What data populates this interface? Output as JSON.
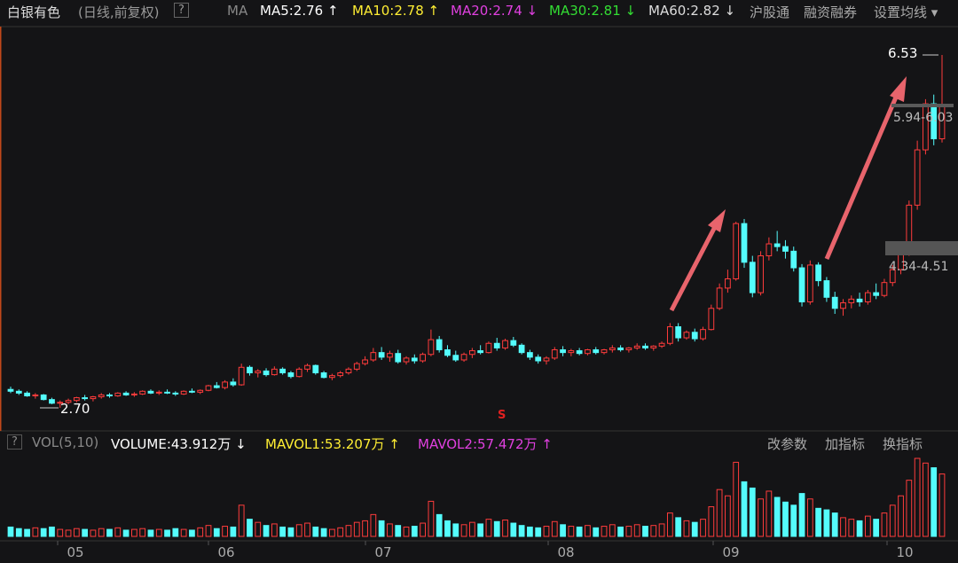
{
  "header": {
    "name": "白银有色",
    "mode": "(日线,前复权)",
    "help": "?",
    "ma_label": "MA",
    "ma5": "MA5:2.76 ↑",
    "ma10": "MA10:2.78 ↑",
    "ma20": "MA20:2.74 ↓",
    "ma30": "MA30:2.81 ↓",
    "ma60": "MA60:2.82 ↓",
    "tabs": [
      "沪股通",
      "融资融券",
      "设置均线 ▾"
    ]
  },
  "price_panel": {
    "high_label": "6.53",
    "low_label": "2.70",
    "range_upper": "5.94-6.03",
    "range_lower": "4.34-4.51",
    "signal": "S",
    "candles": [
      [
        2.9,
        2.93,
        2.86,
        2.88
      ],
      [
        2.88,
        2.9,
        2.84,
        2.86
      ],
      [
        2.86,
        2.88,
        2.82,
        2.83
      ],
      [
        2.83,
        2.86,
        2.8,
        2.84
      ],
      [
        2.84,
        2.85,
        2.78,
        2.79
      ],
      [
        2.79,
        2.81,
        2.74,
        2.75
      ],
      [
        2.75,
        2.78,
        2.7,
        2.76
      ],
      [
        2.76,
        2.8,
        2.74,
        2.78
      ],
      [
        2.78,
        2.82,
        2.76,
        2.81
      ],
      [
        2.81,
        2.84,
        2.78,
        2.8
      ],
      [
        2.8,
        2.83,
        2.77,
        2.82
      ],
      [
        2.82,
        2.86,
        2.8,
        2.84
      ],
      [
        2.84,
        2.86,
        2.81,
        2.83
      ],
      [
        2.83,
        2.87,
        2.82,
        2.86
      ],
      [
        2.86,
        2.88,
        2.83,
        2.84
      ],
      [
        2.84,
        2.87,
        2.82,
        2.85
      ],
      [
        2.85,
        2.89,
        2.84,
        2.88
      ],
      [
        2.88,
        2.9,
        2.85,
        2.86
      ],
      [
        2.86,
        2.89,
        2.84,
        2.87
      ],
      [
        2.87,
        2.9,
        2.85,
        2.86
      ],
      [
        2.86,
        2.88,
        2.83,
        2.85
      ],
      [
        2.85,
        2.89,
        2.84,
        2.88
      ],
      [
        2.88,
        2.91,
        2.86,
        2.87
      ],
      [
        2.87,
        2.9,
        2.85,
        2.89
      ],
      [
        2.89,
        2.95,
        2.88,
        2.94
      ],
      [
        2.94,
        2.98,
        2.91,
        2.92
      ],
      [
        2.92,
        3.0,
        2.9,
        2.98
      ],
      [
        2.98,
        3.02,
        2.93,
        2.95
      ],
      [
        2.95,
        3.18,
        2.94,
        3.14
      ],
      [
        3.14,
        3.16,
        3.05,
        3.08
      ],
      [
        3.08,
        3.12,
        3.03,
        3.1
      ],
      [
        3.1,
        3.13,
        3.04,
        3.06
      ],
      [
        3.06,
        3.15,
        3.05,
        3.12
      ],
      [
        3.12,
        3.14,
        3.06,
        3.08
      ],
      [
        3.08,
        3.1,
        3.02,
        3.04
      ],
      [
        3.04,
        3.14,
        3.03,
        3.12
      ],
      [
        3.12,
        3.18,
        3.09,
        3.16
      ],
      [
        3.16,
        3.17,
        3.06,
        3.08
      ],
      [
        3.08,
        3.1,
        3.02,
        3.03
      ],
      [
        3.03,
        3.07,
        3.0,
        3.05
      ],
      [
        3.05,
        3.1,
        3.03,
        3.08
      ],
      [
        3.08,
        3.14,
        3.06,
        3.12
      ],
      [
        3.12,
        3.2,
        3.1,
        3.18
      ],
      [
        3.18,
        3.26,
        3.16,
        3.22
      ],
      [
        3.22,
        3.35,
        3.2,
        3.3
      ],
      [
        3.3,
        3.36,
        3.22,
        3.25
      ],
      [
        3.25,
        3.32,
        3.2,
        3.29
      ],
      [
        3.29,
        3.33,
        3.18,
        3.2
      ],
      [
        3.2,
        3.26,
        3.17,
        3.24
      ],
      [
        3.24,
        3.28,
        3.18,
        3.21
      ],
      [
        3.21,
        3.3,
        3.19,
        3.28
      ],
      [
        3.28,
        3.55,
        3.26,
        3.44
      ],
      [
        3.44,
        3.48,
        3.3,
        3.33
      ],
      [
        3.33,
        3.38,
        3.25,
        3.27
      ],
      [
        3.27,
        3.32,
        3.2,
        3.22
      ],
      [
        3.22,
        3.3,
        3.2,
        3.28
      ],
      [
        3.28,
        3.35,
        3.24,
        3.32
      ],
      [
        3.32,
        3.38,
        3.28,
        3.3
      ],
      [
        3.3,
        3.42,
        3.29,
        3.4
      ],
      [
        3.4,
        3.46,
        3.32,
        3.35
      ],
      [
        3.35,
        3.45,
        3.33,
        3.43
      ],
      [
        3.43,
        3.47,
        3.36,
        3.38
      ],
      [
        3.38,
        3.4,
        3.28,
        3.3
      ],
      [
        3.3,
        3.33,
        3.22,
        3.25
      ],
      [
        3.25,
        3.28,
        3.18,
        3.21
      ],
      [
        3.21,
        3.26,
        3.17,
        3.24
      ],
      [
        3.24,
        3.36,
        3.22,
        3.33
      ],
      [
        3.33,
        3.37,
        3.26,
        3.3
      ],
      [
        3.3,
        3.34,
        3.26,
        3.32
      ],
      [
        3.32,
        3.35,
        3.27,
        3.29
      ],
      [
        3.29,
        3.34,
        3.27,
        3.33
      ],
      [
        3.33,
        3.36,
        3.28,
        3.3
      ],
      [
        3.3,
        3.34,
        3.28,
        3.33
      ],
      [
        3.33,
        3.38,
        3.3,
        3.35
      ],
      [
        3.35,
        3.38,
        3.31,
        3.33
      ],
      [
        3.33,
        3.36,
        3.3,
        3.35
      ],
      [
        3.35,
        3.4,
        3.33,
        3.37
      ],
      [
        3.37,
        3.4,
        3.33,
        3.35
      ],
      [
        3.35,
        3.38,
        3.32,
        3.37
      ],
      [
        3.37,
        3.42,
        3.35,
        3.4
      ],
      [
        3.4,
        3.62,
        3.38,
        3.58
      ],
      [
        3.58,
        3.62,
        3.42,
        3.46
      ],
      [
        3.46,
        3.54,
        3.44,
        3.52
      ],
      [
        3.52,
        3.56,
        3.42,
        3.45
      ],
      [
        3.45,
        3.58,
        3.43,
        3.55
      ],
      [
        3.55,
        3.82,
        3.54,
        3.78
      ],
      [
        3.78,
        4.05,
        3.76,
        4.0
      ],
      [
        4.0,
        4.2,
        3.95,
        4.1
      ],
      [
        4.1,
        4.72,
        4.08,
        4.7
      ],
      [
        4.7,
        4.75,
        4.22,
        4.28
      ],
      [
        4.28,
        4.35,
        3.9,
        3.95
      ],
      [
        3.95,
        4.4,
        3.92,
        4.35
      ],
      [
        4.35,
        4.55,
        4.3,
        4.48
      ],
      [
        4.48,
        4.62,
        4.4,
        4.45
      ],
      [
        4.45,
        4.52,
        4.32,
        4.4
      ],
      [
        4.4,
        4.45,
        4.18,
        4.22
      ],
      [
        4.22,
        4.26,
        3.8,
        3.85
      ],
      [
        3.85,
        4.3,
        3.82,
        4.25
      ],
      [
        4.25,
        4.28,
        4.02,
        4.08
      ],
      [
        4.08,
        4.12,
        3.85,
        3.9
      ],
      [
        3.9,
        3.96,
        3.72,
        3.78
      ],
      [
        3.78,
        3.88,
        3.7,
        3.84
      ],
      [
        3.84,
        3.92,
        3.78,
        3.88
      ],
      [
        3.88,
        3.95,
        3.8,
        3.85
      ],
      [
        3.85,
        3.98,
        3.82,
        3.95
      ],
      [
        3.95,
        4.05,
        3.88,
        3.92
      ],
      [
        3.92,
        4.1,
        3.9,
        4.06
      ],
      [
        4.06,
        4.25,
        4.02,
        4.2
      ],
      [
        4.2,
        4.45,
        4.15,
        4.4
      ],
      [
        4.4,
        4.95,
        4.35,
        4.9
      ],
      [
        4.9,
        5.6,
        4.85,
        5.5
      ],
      [
        5.5,
        6.05,
        5.45,
        6.0
      ],
      [
        6.0,
        6.1,
        5.55,
        5.62
      ],
      [
        5.62,
        6.53,
        5.58,
        5.98
      ]
    ]
  },
  "volume_panel": {
    "indicator": "VOL(5,10)",
    "volume": "VOLUME:43.912万 ↓",
    "mavol1": "MAVOL1:53.207万 ↑",
    "mavol2": "MAVOL2:57.472万 ↑",
    "buttons": [
      "改参数",
      "加指标",
      "换指标"
    ],
    "volumes": [
      12,
      10,
      9,
      11,
      10,
      12,
      9,
      8,
      10,
      9,
      8,
      10,
      9,
      11,
      8,
      9,
      10,
      8,
      9,
      8,
      10,
      9,
      8,
      11,
      14,
      10,
      13,
      12,
      40,
      22,
      18,
      14,
      16,
      12,
      11,
      15,
      17,
      12,
      10,
      9,
      11,
      14,
      18,
      20,
      28,
      20,
      16,
      14,
      12,
      13,
      17,
      45,
      28,
      20,
      16,
      15,
      18,
      16,
      22,
      19,
      21,
      17,
      14,
      12,
      11,
      13,
      19,
      15,
      13,
      12,
      14,
      11,
      13,
      15,
      12,
      13,
      15,
      13,
      14,
      16,
      30,
      24,
      20,
      18,
      22,
      38,
      60,
      52,
      95,
      70,
      62,
      48,
      58,
      50,
      44,
      40,
      55,
      48,
      36,
      34,
      30,
      24,
      22,
      20,
      26,
      22,
      30,
      40,
      52,
      72,
      100,
      94,
      88,
      80
    ]
  },
  "months": [
    "05",
    "06",
    "07",
    "08",
    "09",
    "10"
  ]
}
